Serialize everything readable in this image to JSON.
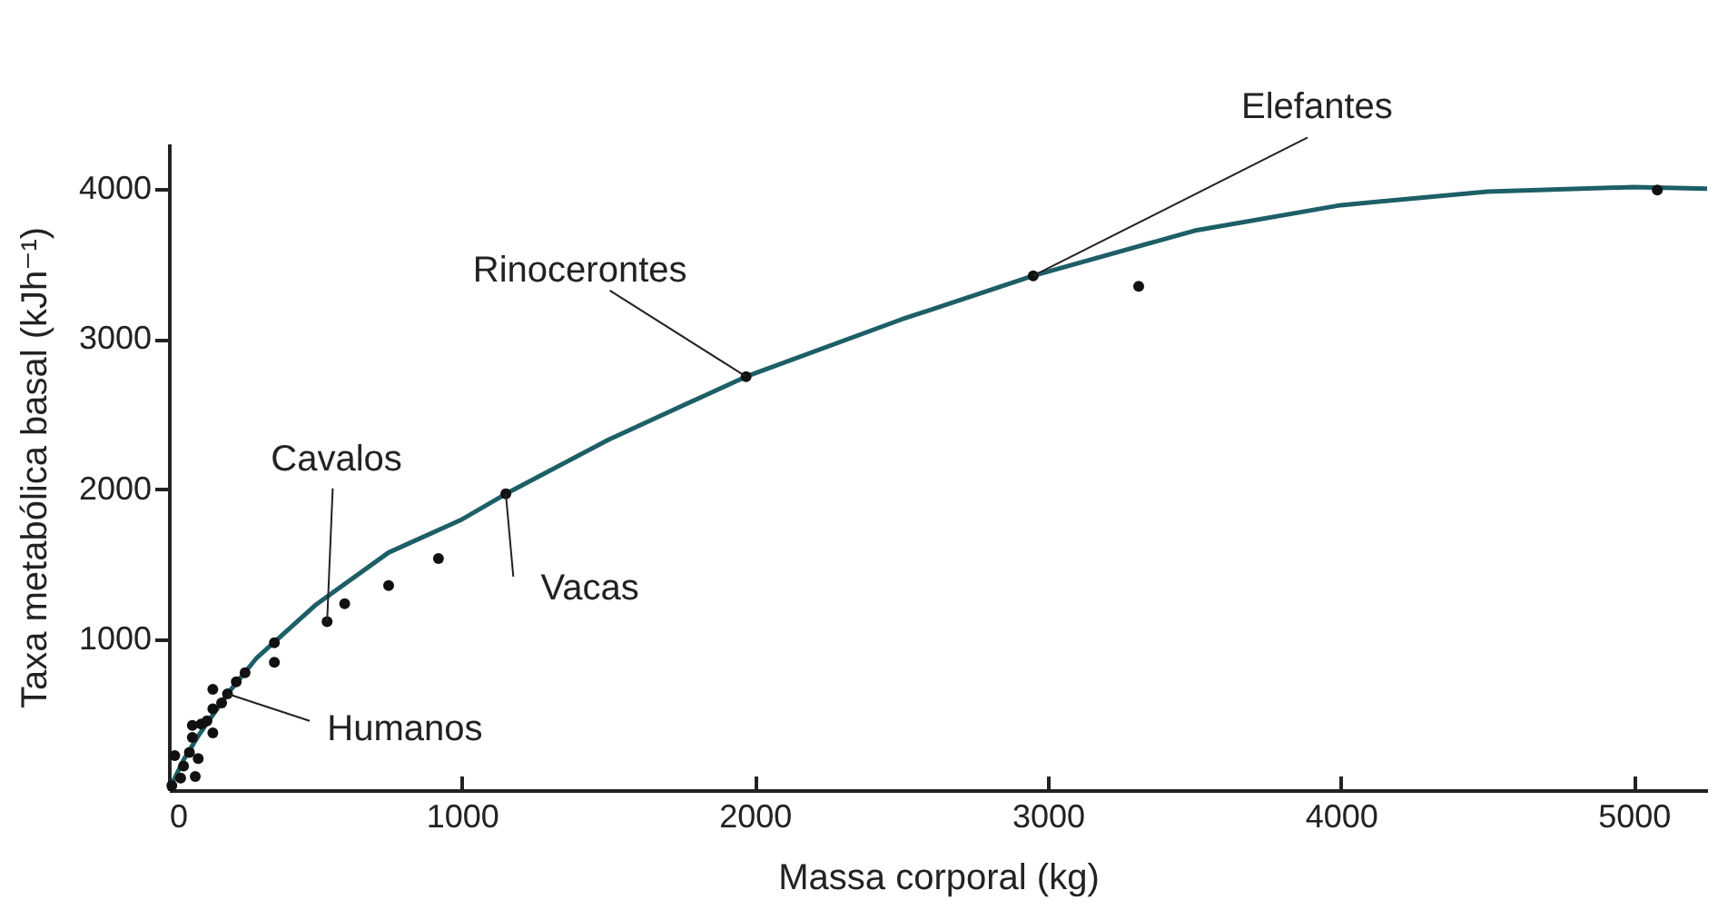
{
  "chart_data": {
    "type": "scatter",
    "xlabel": "Massa corporal (kg)",
    "ylabel": "Taxa metabólica basal (kJh⁻¹)",
    "xlim": [
      0,
      5250
    ],
    "ylim": [
      0,
      4300
    ],
    "xticks": [
      0,
      1000,
      2000,
      3000,
      4000,
      5000
    ],
    "yticks": [
      1000,
      2000,
      3000,
      4000
    ],
    "grid": false,
    "series": [
      {
        "marker": "circle",
        "color": "#111111",
        "x": [
          10,
          40,
          90,
          50,
          20,
          100,
          70,
          80,
          80,
          110,
          150,
          130,
          150,
          180,
          150,
          200,
          230,
          260,
          360,
          360,
          540,
          600,
          750,
          920,
          1150,
          1970,
          2950,
          3310,
          5080
        ],
        "values": [
          30,
          80,
          90,
          160,
          230,
          210,
          250,
          350,
          430,
          440,
          380,
          460,
          540,
          580,
          670,
          640,
          720,
          780,
          850,
          980,
          1120,
          1240,
          1360,
          1540,
          1970,
          2750,
          3420,
          3350,
          3990
        ]
      },
      {
        "type": "line",
        "color": "#1d5f66",
        "x": [
          0,
          50,
          100,
          200,
          300,
          500,
          750,
          1000,
          1150,
          1500,
          1970,
          2500,
          2950,
          3500,
          4000,
          4500,
          5000,
          5250
        ],
        "values": [
          0,
          200,
          360,
          640,
          880,
          1230,
          1580,
          1800,
          1970,
          2330,
          2750,
          3130,
          3420,
          3720,
          3890,
          3980,
          4010,
          4000
        ]
      }
    ],
    "annotations": [
      {
        "text": "Elefantes",
        "x": 2950,
        "y": 3420
      },
      {
        "text": "Rinocerontes",
        "x": 1970,
        "y": 2750
      },
      {
        "text": "Cavalos",
        "x": 540,
        "y": 1120
      },
      {
        "text": "Vacas",
        "x": 1150,
        "y": 1970
      },
      {
        "text": "Humanos",
        "x": 200,
        "y": 640
      }
    ]
  }
}
